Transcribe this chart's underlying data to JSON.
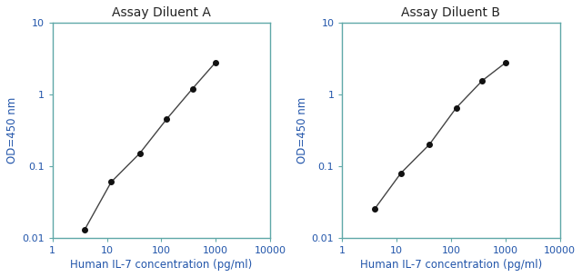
{
  "chart_A": {
    "title": "Assay Diluent A",
    "x": [
      3.9,
      12,
      40,
      125,
      375,
      1000
    ],
    "y": [
      0.013,
      0.06,
      0.15,
      0.45,
      1.2,
      2.8
    ]
  },
  "chart_B": {
    "title": "Assay Diluent B",
    "x": [
      3.9,
      12,
      40,
      125,
      375,
      1000
    ],
    "y": [
      0.025,
      0.08,
      0.2,
      0.65,
      1.55,
      2.75
    ]
  },
  "xlabel": "Human IL-7 concentration (pg/ml)",
  "ylabel": "OD=450 nm",
  "xlim": [
    1,
    10000
  ],
  "ylim": [
    0.01,
    10
  ],
  "line_color": "#444444",
  "marker_color": "#111111",
  "marker_size": 4,
  "line_width": 1.0,
  "title_fontsize": 10,
  "label_fontsize": 8.5,
  "tick_fontsize": 8,
  "background_color": "#ffffff",
  "spine_color": "#5fa8a8",
  "text_color": "#222222",
  "axis_label_color": "#2255aa",
  "tick_label_color": "#2255aa"
}
